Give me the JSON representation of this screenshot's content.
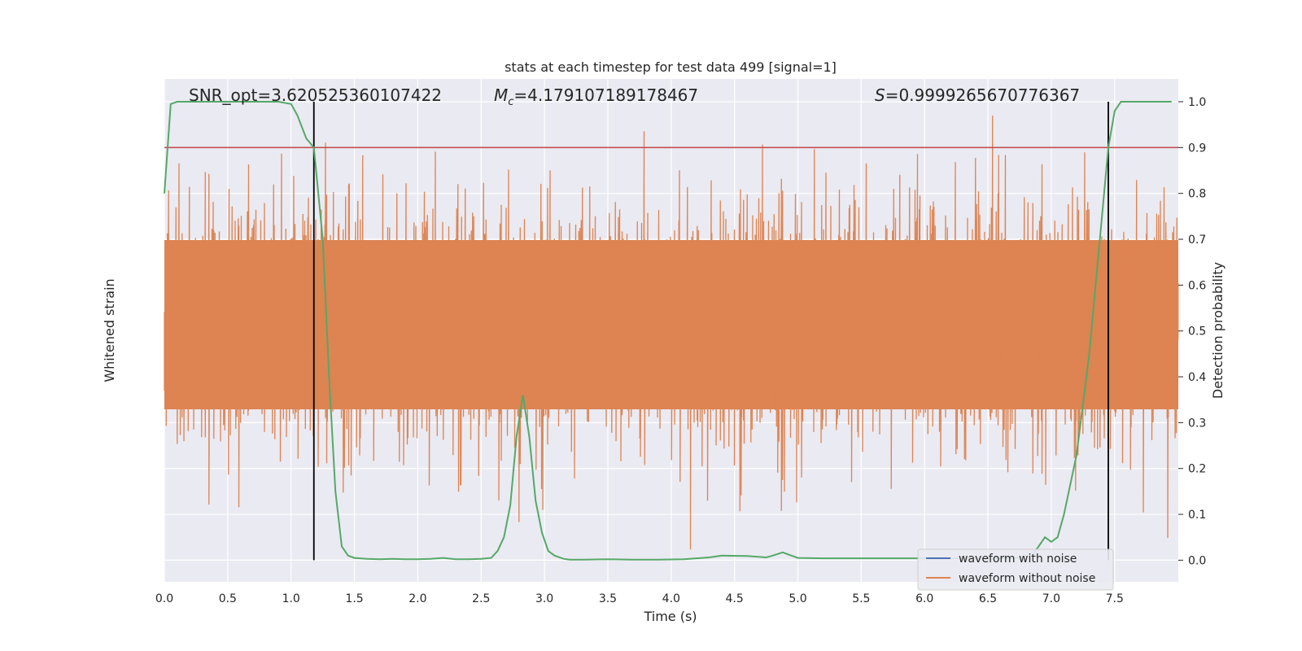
{
  "chart_data": {
    "type": "line",
    "title": "stats at each timestep for test data 499 [signal=1]",
    "xlabel": "Time (s)",
    "ylabel_left": "Whitened strain",
    "ylabel_right": "Detection probability",
    "xlim": [
      0.0,
      8.0
    ],
    "ylim_right": [
      -0.05,
      1.05
    ],
    "x_ticks": [
      "0.0",
      "0.5",
      "1.0",
      "1.5",
      "2.0",
      "2.5",
      "3.0",
      "3.5",
      "4.0",
      "4.5",
      "5.0",
      "5.5",
      "6.0",
      "6.5",
      "7.0",
      "7.5"
    ],
    "y_right_ticks": [
      "0.0",
      "0.1",
      "0.2",
      "0.3",
      "0.4",
      "0.5",
      "0.6",
      "0.7",
      "0.8",
      "0.9",
      "1.0"
    ],
    "grid": true,
    "annotations": {
      "snr": "SNR_opt=3.620525360107422",
      "mc_symbol": "M",
      "mc_sub": "c",
      "mc_value": "=4.179107189178467",
      "s_symbol": "S",
      "s_value": "=0.9999265670776367"
    },
    "threshold": 0.9,
    "vertical_lines_x": [
      1.18,
      7.45
    ],
    "legend": {
      "position": "lower right",
      "entries": [
        {
          "label": "waveform with noise",
          "color": "#4c72b0"
        },
        {
          "label": "waveform without noise",
          "color": "#dd8452"
        }
      ]
    },
    "series": [
      {
        "name": "detection probability",
        "color": "#55a868",
        "x": [
          0.0,
          0.05,
          0.1,
          0.2,
          0.3,
          0.4,
          0.5,
          0.6,
          0.7,
          0.8,
          0.9,
          1.0,
          1.05,
          1.12,
          1.18,
          1.25,
          1.3,
          1.35,
          1.4,
          1.45,
          1.5,
          1.6,
          1.7,
          1.8,
          1.9,
          2.0,
          2.1,
          2.2,
          2.3,
          2.4,
          2.5,
          2.58,
          2.63,
          2.68,
          2.73,
          2.78,
          2.83,
          2.88,
          2.93,
          2.98,
          3.03,
          3.08,
          3.15,
          3.2,
          3.3,
          3.5,
          3.7,
          3.9,
          4.1,
          4.2,
          4.3,
          4.4,
          4.6,
          4.75,
          4.8,
          4.88,
          4.95,
          5.0,
          5.2,
          5.5,
          5.8,
          6.1,
          6.4,
          6.7,
          6.85,
          6.9,
          6.95,
          7.0,
          7.05,
          7.1,
          7.2,
          7.3,
          7.4,
          7.45,
          7.5,
          7.55,
          7.6,
          7.7,
          7.8,
          7.95
        ],
        "y": [
          0.8,
          0.995,
          1.0,
          1.0,
          1.0,
          1.0,
          1.0,
          1.0,
          1.0,
          1.0,
          1.0,
          0.995,
          0.97,
          0.92,
          0.9,
          0.7,
          0.4,
          0.15,
          0.03,
          0.01,
          0.005,
          0.003,
          0.002,
          0.003,
          0.002,
          0.002,
          0.003,
          0.005,
          0.002,
          0.002,
          0.003,
          0.005,
          0.02,
          0.05,
          0.12,
          0.27,
          0.36,
          0.27,
          0.13,
          0.06,
          0.02,
          0.01,
          0.003,
          0.001,
          0.001,
          0.002,
          0.001,
          0.001,
          0.002,
          0.004,
          0.006,
          0.01,
          0.009,
          0.006,
          0.01,
          0.017,
          0.01,
          0.005,
          0.004,
          0.004,
          0.004,
          0.004,
          0.004,
          0.004,
          0.01,
          0.03,
          0.05,
          0.04,
          0.05,
          0.1,
          0.23,
          0.45,
          0.75,
          0.9,
          0.98,
          1.0,
          1.0,
          1.0,
          1.0,
          1.0
        ]
      }
    ],
    "colors": {
      "background": "#eaeaf2",
      "grid": "#ffffff",
      "strain": "#dd8452",
      "threshold_line": "#c44e52",
      "vertical_line": "#000000"
    }
  }
}
